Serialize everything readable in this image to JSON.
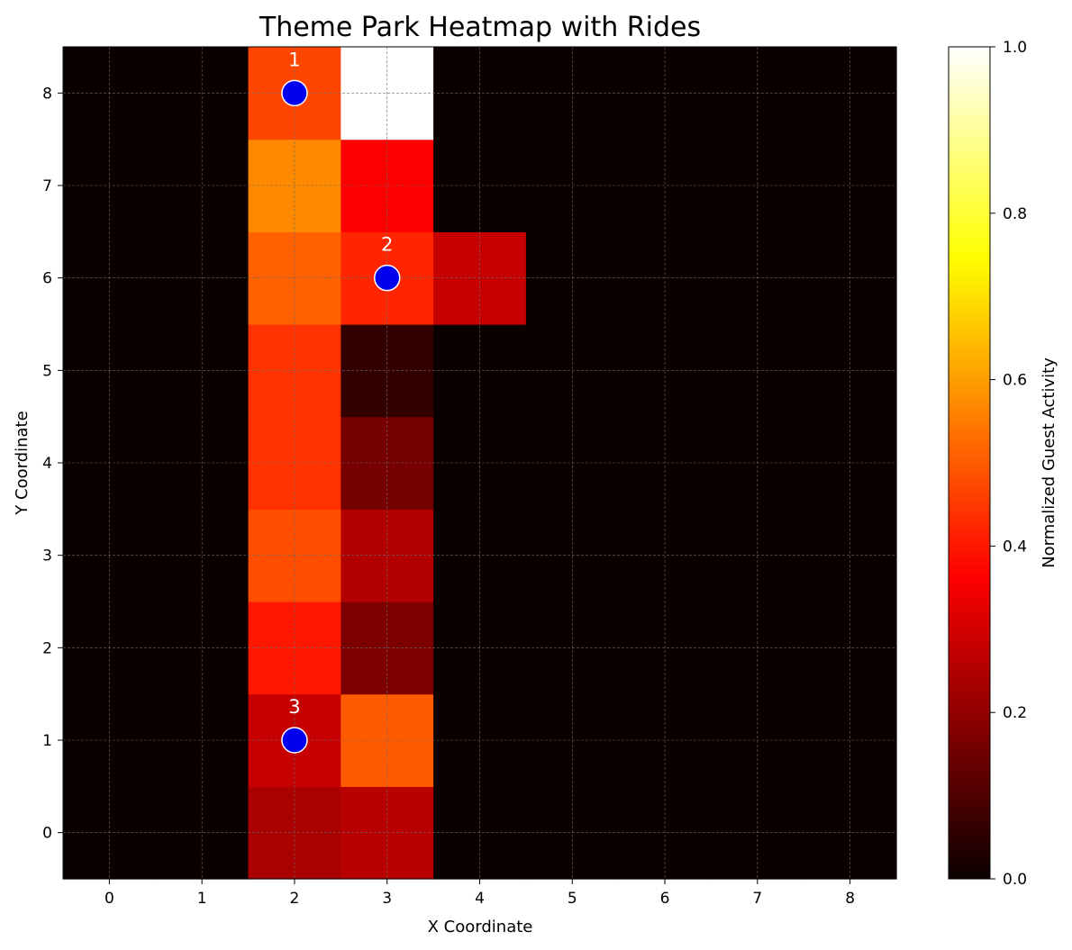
{
  "chart_data": {
    "type": "heatmap",
    "title": "Theme Park Heatmap with Rides",
    "xlabel": "X Coordinate",
    "ylabel": "Y Coordinate",
    "x": [
      0,
      1,
      2,
      3,
      4,
      5,
      6,
      7,
      8
    ],
    "y": [
      0,
      1,
      2,
      3,
      4,
      5,
      6,
      7,
      8
    ],
    "colormap": "hot",
    "grid": true,
    "grid_style": "dashed",
    "colorbar": {
      "label": "Normalized Guest Activity",
      "range": [
        0.0,
        1.0
      ],
      "ticks": [
        "0.0",
        "0.2",
        "0.4",
        "0.6",
        "0.8",
        "1.0"
      ]
    },
    "values_note_rows_y0_to_y8": true,
    "values": [
      [
        0,
        0,
        0.24,
        0.26,
        0,
        0,
        0,
        0,
        0
      ],
      [
        0,
        0,
        0.28,
        0.5,
        0,
        0,
        0,
        0,
        0
      ],
      [
        0,
        0,
        0.4,
        0.17,
        0,
        0,
        0,
        0,
        0
      ],
      [
        0,
        0,
        0.48,
        0.25,
        0,
        0,
        0,
        0,
        0
      ],
      [
        0,
        0,
        0.44,
        0.16,
        0,
        0,
        0,
        0,
        0
      ],
      [
        0,
        0,
        0.44,
        0.06,
        0,
        0,
        0,
        0,
        0
      ],
      [
        0,
        0,
        0.51,
        0.42,
        0.28,
        0,
        0,
        0,
        0
      ],
      [
        0,
        0,
        0.57,
        0.36,
        0,
        0,
        0,
        0,
        0
      ],
      [
        0,
        0,
        0.47,
        1.0,
        0,
        0,
        0,
        0,
        0
      ]
    ],
    "rides": [
      {
        "label": "1",
        "x": 2,
        "y": 8
      },
      {
        "label": "2",
        "x": 3,
        "y": 6
      },
      {
        "label": "3",
        "x": 2,
        "y": 1
      }
    ],
    "ride_marker_color": "#0000ee"
  }
}
